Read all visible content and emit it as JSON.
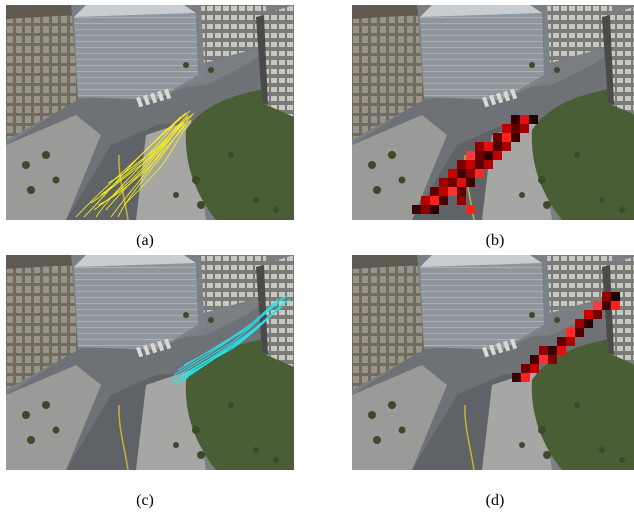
{
  "figure": {
    "panels": [
      {
        "id": "a",
        "caption": "(a)",
        "overlay": "trajectories",
        "overlay_color": "#f2ee1e"
      },
      {
        "id": "b",
        "caption": "(b)",
        "overlay": "heatmap",
        "overlay_color": "#cc0000"
      },
      {
        "id": "c",
        "caption": "(c)",
        "overlay": "trajectories",
        "overlay_color": "#22e6ee"
      },
      {
        "id": "d",
        "caption": "(d)",
        "overlay": "heatmap",
        "overlay_color": "#cc0000"
      }
    ]
  }
}
